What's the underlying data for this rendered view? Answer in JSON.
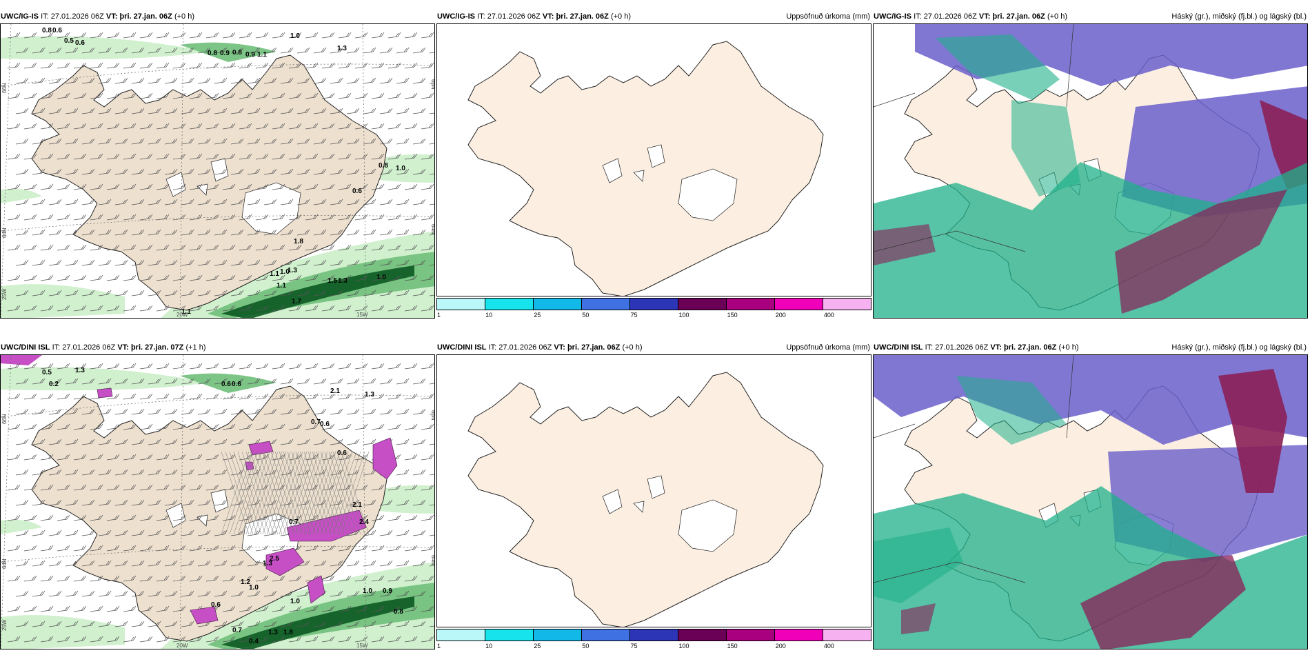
{
  "panels": [
    {
      "model": "UWC/IG-IS",
      "it_label": "IT:",
      "it_value": "27.01.2026 06Z",
      "vt_label": "VT:",
      "vt_value": "þri. 27.jan. 06Z",
      "lead": "(+0 h)",
      "right_title": ""
    },
    {
      "model": "UWC/IG-IS",
      "it_label": "IT:",
      "it_value": "27.01.2026 06Z",
      "vt_label": "VT:",
      "vt_value": "þri. 27.jan. 06Z",
      "lead": "(+0 h)",
      "right_title": "Uppsöfnuð úrkoma (mm)"
    },
    {
      "model": "UWC/IG-IS",
      "it_label": "IT:",
      "it_value": "27.01.2026 06Z",
      "vt_label": "VT:",
      "vt_value": "þri. 27.jan. 06Z",
      "lead": "(+0 h)",
      "right_title": "Háský (gr.), miðský (fj.bl.) og lágský (bl.)"
    },
    {
      "model": "UWC/DINI ISL",
      "it_label": "IT:",
      "it_value": "27.01.2026 06Z",
      "vt_label": "VT:",
      "vt_value": "þri. 27.jan. 07Z",
      "lead": "(+1 h)",
      "right_title": ""
    },
    {
      "model": "UWC/DINI ISL",
      "it_label": "IT:",
      "it_value": "27.01.2026 06Z",
      "vt_label": "VT:",
      "vt_value": "þri. 27.jan. 06Z",
      "lead": "(+0 h)",
      "right_title": "Uppsöfnuð úrkoma (mm)"
    },
    {
      "model": "UWC/DINI ISL",
      "it_label": "IT:",
      "it_value": "27.01.2026 06Z",
      "vt_label": "VT:",
      "vt_value": "þri. 27.jan. 06Z",
      "lead": "(+0 h)",
      "right_title": "Háský (gr.), miðský (fj.bl.) og lágský (bl.)"
    }
  ],
  "colorbar": {
    "ticks": [
      "1",
      "10",
      "25",
      "50",
      "75",
      "100",
      "150",
      "200",
      "400"
    ],
    "colors": [
      "#b9f7f8",
      "#16e3ec",
      "#12b8e8",
      "#3f71e3",
      "#2b35b5",
      "#6b0057",
      "#a8007e",
      "#f000b8",
      "#f6b2f0"
    ]
  },
  "axis_labels": {
    "lon": [
      "20W",
      "15W"
    ],
    "lat_left": [
      "66N",
      "64N",
      "25W"
    ],
    "lat_right": [
      "66N",
      "64N"
    ]
  },
  "wind_labels_top": [
    "0.8",
    "0.6",
    "0.5",
    "0.6",
    "1.0",
    "0.8",
    "0.9",
    "0.8",
    "0.9",
    "1.1",
    "1.3",
    "0.8",
    "1.0",
    "0.6",
    "1.8",
    "1.1",
    "1.0",
    "1.3",
    "1.1",
    "1.5",
    "1.3",
    "1.0",
    "1.1",
    "1.7"
  ],
  "wind_labels_bottom": [
    "0.5",
    "1.3",
    "0.2",
    "0.6",
    "0.6",
    "2.1",
    "1.3",
    "0.7",
    "0.6",
    "0.6",
    "0.7",
    "2.1",
    "2.4",
    "2.5",
    "1.3",
    "1.0",
    "1.2",
    "0.6",
    "1.0",
    "1.0",
    "0.9",
    "0.8",
    "0.7",
    "1.3",
    "1.8",
    "0.4"
  ],
  "colors": {
    "land": "#ede0cf",
    "land_plain": "#fcefe2",
    "precip_light": "#cbeec9",
    "precip_mid": "#6fbf7a",
    "precip_dark": "#0b5a22",
    "snow": "#c64fc6",
    "cloud_high": "#6a5fcb",
    "cloud_mid": "#1fb08a",
    "cloud_low": "#8a1f55"
  }
}
